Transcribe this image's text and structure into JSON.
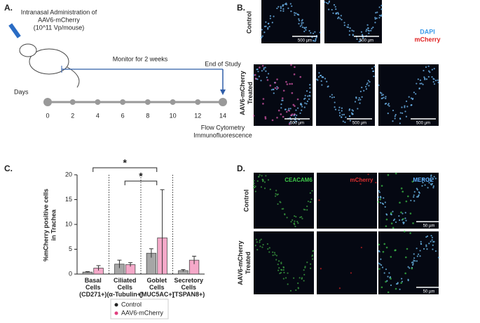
{
  "panel_a": {
    "label": "A.",
    "administration": [
      "Intranasal Administration of",
      "AAV6-mCherry",
      "(10^11 Vp/mouse)"
    ],
    "monitor": "Monitor for 2 weeks",
    "end": "End of Study",
    "axis_label": "Days",
    "days": [
      0,
      2,
      4,
      6,
      8,
      10,
      12,
      14
    ],
    "methods": [
      "Flow Cytometry",
      "Immunofluorescence"
    ]
  },
  "panel_b": {
    "label": "B.",
    "row_labels": [
      [
        "Control"
      ],
      [
        "AAV6-mCherry",
        "Treated"
      ]
    ],
    "legend": [
      "DAPI",
      "mCherry"
    ],
    "scale_bars": [
      "500 µm",
      "500 µm",
      "500 µm",
      "500 µm",
      "500 µm"
    ]
  },
  "chart_data": {
    "type": "bar",
    "panel_label": "C.",
    "ylabel": [
      "%mCherry positive cells",
      "in Trachea"
    ],
    "categories": [
      "Basal Cells (CD271+)",
      "Ciliated Cells (α-Tubulin+)",
      "Goblet Cells (MUC5AC+)",
      "Secretory Cells (TSPAN8+)"
    ],
    "series": [
      {
        "name": "Control",
        "color": "#a6a6a6",
        "values": [
          0.4,
          2.0,
          4.2,
          0.7
        ],
        "errors": [
          0.1,
          0.8,
          0.9,
          0.2
        ]
      },
      {
        "name": "AAV6-mCherry",
        "color": "#f5a9c9",
        "values": [
          1.2,
          1.9,
          7.3,
          2.8
        ],
        "errors": [
          0.5,
          0.4,
          9.7,
          0.8
        ]
      }
    ],
    "ylim": [
      0,
      20
    ],
    "yticks": [
      0,
      5,
      10,
      15,
      20
    ],
    "annotations": [
      "*",
      "*"
    ],
    "legend": "bottom"
  },
  "panel_d": {
    "label": "D.",
    "channels": [
      "CEACAM6",
      "mCherry",
      "MERGE"
    ],
    "row_labels": [
      [
        "Control"
      ],
      [
        "AAV6-mCherry",
        "Treated"
      ]
    ],
    "scale_bars": [
      "50 µm",
      "50 µm"
    ]
  }
}
